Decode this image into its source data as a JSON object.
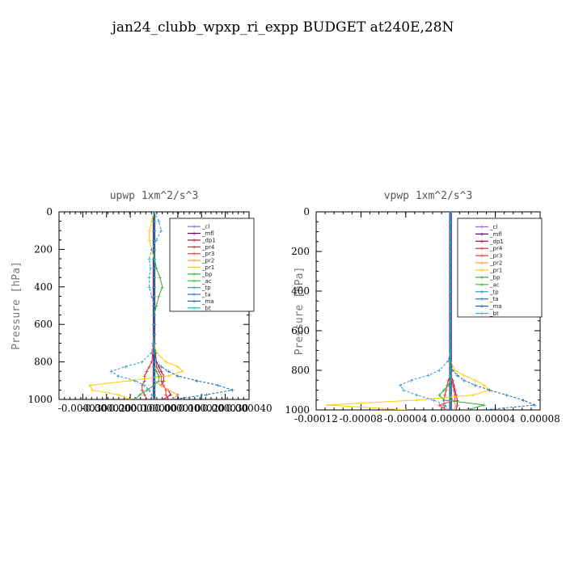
{
  "figure": {
    "title": "jan24_clubb_wpxp_ri_expp  BUDGET at240E,28N"
  },
  "chart_data": [
    {
      "type": "line",
      "title": "upwp   1xm^2/s^3",
      "ylabel": "Pressure [hPa]",
      "xlabel": "",
      "ylim": [
        1000,
        0
      ],
      "xlim": [
        -4e-05,
        4e-05
      ],
      "y_ticks": [
        "0",
        "200",
        "400",
        "600",
        "800",
        "1000"
      ],
      "x_ticks": [
        "-0.000030",
        "-0.000020",
        "-0.000010",
        "0.000000",
        "0.000010",
        "0.000020",
        "0.000030",
        "0.000040"
      ],
      "legend_position": "upper-right",
      "levels": [
        0,
        50,
        100,
        150,
        200,
        250,
        300,
        350,
        400,
        450,
        500,
        550,
        600,
        650,
        700,
        750,
        800,
        825,
        850,
        875,
        900,
        925,
        950,
        975,
        1000
      ],
      "series": [
        {
          "name": "_cl",
          "color": "#9966cc",
          "values": [
            0,
            0,
            0,
            0,
            0,
            0,
            0,
            0,
            0,
            0,
            0,
            0,
            0,
            0,
            0,
            0,
            0,
            0,
            0,
            0,
            0,
            0,
            0,
            0,
            0
          ]
        },
        {
          "name": "_mfl",
          "color": "#660066",
          "values": [
            0,
            0,
            0,
            0,
            0,
            0,
            0,
            0,
            0,
            0,
            0,
            0,
            0,
            0,
            0,
            0,
            0,
            0,
            0,
            0,
            0,
            0,
            0,
            0,
            0
          ]
        },
        {
          "name": "_dp1",
          "color": "#aa1144",
          "values": [
            0,
            0,
            0,
            0,
            0,
            0,
            0,
            0,
            0,
            0,
            0,
            0,
            0,
            0,
            2e-07,
            5e-07,
            1e-06,
            2e-06,
            3e-06,
            4e-06,
            4e-06,
            3e-06,
            6e-06,
            7e-06,
            4e-06
          ]
        },
        {
          "name": "_pr4",
          "color": "#cc3333",
          "values": [
            0,
            0,
            0,
            0,
            0,
            0,
            0,
            0,
            0,
            0,
            0,
            0,
            0,
            0,
            -2e-07,
            -5e-07,
            -1e-06,
            -2e-06,
            -3e-06,
            -4e-06,
            -4e-06,
            -5e-06,
            -5e-06,
            -4e-06,
            -3e-06
          ]
        },
        {
          "name": "_pr3",
          "color": "#ff3333",
          "values": [
            0,
            0,
            0,
            0,
            0,
            0,
            0,
            0,
            0,
            0,
            0,
            0,
            0,
            0,
            2e-07,
            5e-07,
            1e-06,
            1e-06,
            2e-06,
            3e-06,
            3e-06,
            4e-06,
            5e-06,
            5e-06,
            6e-06
          ]
        },
        {
          "name": "_pr2",
          "color": "#ff9933",
          "values": [
            0,
            0,
            0,
            0,
            0,
            0,
            0,
            0,
            0,
            0,
            0,
            0,
            0,
            0,
            0,
            0,
            0,
            0,
            0,
            0,
            0,
            3e-06,
            6e-06,
            1e-05,
            8e-06
          ]
        },
        {
          "name": "_pr1",
          "color": "#ffcc00",
          "values": [
            0,
            -1e-06,
            -2e-06,
            -2e-06,
            -1e-06,
            0,
            0,
            0,
            0,
            0,
            0,
            0,
            0,
            0,
            0,
            1e-06,
            5e-06,
            1e-05,
            1.2e-05,
            6e-06,
            -1e-05,
            -2.7e-05,
            -2.6e-05,
            -1.5e-05,
            -1e-05
          ]
        },
        {
          "name": "_bp",
          "color": "#33aa33",
          "values": [
            0,
            0,
            0,
            0,
            0,
            2e-07,
            1e-06,
            2.5e-06,
            3.5e-06,
            2e-06,
            1e-06,
            0,
            0,
            0,
            0,
            0,
            0,
            0,
            1e-06,
            2e-06,
            2e-06,
            0,
            -3e-06,
            -6e-06,
            -8e-06
          ]
        },
        {
          "name": "_ac",
          "color": "#33cc33",
          "values": [
            0,
            0,
            0,
            0,
            0,
            0,
            0,
            0,
            0,
            0,
            0,
            0,
            0,
            0,
            0,
            0,
            0,
            0,
            0,
            0,
            0,
            0,
            0,
            0,
            0
          ]
        },
        {
          "name": "_tp",
          "color": "#3399cc",
          "values": [
            0,
            2e-06,
            3e-06,
            1e-06,
            -1e-06,
            -2e-06,
            -1.5e-06,
            -2e-06,
            -2e-06,
            -1e-06,
            0,
            0,
            0,
            0,
            -5e-07,
            -1e-06,
            -5e-06,
            -1.2e-05,
            -1.8e-05,
            -1.5e-05,
            -8e-06,
            -4e-06,
            -2e-06,
            -1e-06,
            0
          ]
        },
        {
          "name": "_ta",
          "color": "#3366ff",
          "values": [
            0,
            0,
            0,
            0,
            0,
            0,
            0,
            0,
            0,
            0,
            0,
            0,
            0,
            0,
            0,
            0,
            0,
            0,
            0,
            0,
            0,
            0,
            0,
            0,
            0
          ]
        },
        {
          "name": "_ma",
          "color": "#1166aa",
          "values": [
            0,
            0,
            0,
            0,
            0,
            0,
            0,
            0,
            0,
            0,
            0,
            0,
            0,
            0,
            0,
            5e-07,
            1e-06,
            3e-06,
            6e-06,
            1e-05,
            1.8e-05,
            2.7e-05,
            3.3e-05,
            2.2e-05,
            8e-06
          ]
        },
        {
          "name": "_bt",
          "color": "#00cccc",
          "values": [
            0,
            0,
            0,
            0,
            0,
            0,
            0,
            0,
            0,
            0,
            0,
            0,
            0,
            0,
            0,
            0,
            0,
            0,
            0,
            0,
            0,
            0,
            0,
            0,
            0
          ]
        }
      ]
    },
    {
      "type": "line",
      "title": "vpwp   1xm^2/s^3",
      "ylabel": "Pressure [hPa]",
      "xlabel": "",
      "ylim": [
        1000,
        0
      ],
      "xlim": [
        -0.00012,
        8e-05
      ],
      "y_ticks": [
        "0",
        "200",
        "400",
        "600",
        "800",
        "1000"
      ],
      "x_ticks": [
        "-0.00012",
        "-0.00008",
        "-0.00004",
        "0.00000",
        "0.00004",
        "0.00008"
      ],
      "legend_position": "upper-right",
      "levels": [
        0,
        50,
        100,
        150,
        200,
        250,
        300,
        350,
        400,
        450,
        500,
        550,
        600,
        650,
        700,
        750,
        800,
        825,
        850,
        875,
        900,
        925,
        950,
        975,
        1000
      ],
      "series": [
        {
          "name": "_cl",
          "color": "#9966cc",
          "values": [
            0,
            0,
            0,
            0,
            0,
            0,
            0,
            0,
            0,
            0,
            0,
            0,
            0,
            0,
            0,
            0,
            0,
            0,
            0,
            0,
            0,
            0,
            0,
            0,
            0
          ]
        },
        {
          "name": "_mfl",
          "color": "#660066",
          "values": [
            0,
            0,
            0,
            0,
            0,
            0,
            0,
            0,
            0,
            0,
            0,
            0,
            0,
            0,
            0,
            0,
            0,
            0,
            0,
            0,
            0,
            0,
            0,
            0,
            0
          ]
        },
        {
          "name": "_dp1",
          "color": "#aa1144",
          "values": [
            0,
            0,
            0,
            0,
            0,
            0,
            0,
            0,
            0,
            0,
            0,
            0,
            0,
            0,
            0,
            0,
            0,
            0,
            2e-06,
            3e-06,
            4e-06,
            5e-06,
            6e-06,
            6e-06,
            5e-06
          ]
        },
        {
          "name": "_pr4",
          "color": "#cc3333",
          "values": [
            0,
            0,
            0,
            0,
            0,
            0,
            0,
            0,
            0,
            0,
            0,
            0,
            0,
            0,
            0,
            0,
            0,
            0,
            -2e-06,
            -3e-06,
            -4e-06,
            -5e-06,
            -6e-06,
            -6e-06,
            -5e-06
          ]
        },
        {
          "name": "_pr3",
          "color": "#ff3333",
          "values": [
            0,
            0,
            0,
            0,
            0,
            0,
            0,
            0,
            0,
            0,
            0,
            0,
            0,
            0,
            0,
            0,
            0,
            0,
            1e-06,
            2e-06,
            3e-06,
            4e-06,
            4e-06,
            -1e-05,
            -4e-06
          ]
        },
        {
          "name": "_pr2",
          "color": "#ff9933",
          "values": [
            0,
            0,
            0,
            0,
            0,
            0,
            0,
            0,
            0,
            0,
            0,
            0,
            0,
            0,
            0,
            0,
            0,
            0,
            0,
            0,
            0,
            0,
            2e-06,
            5e-06,
            3e-06
          ]
        },
        {
          "name": "_pr1",
          "color": "#ffcc00",
          "values": [
            0,
            0,
            0,
            0,
            0,
            0,
            0,
            0,
            0,
            0,
            0,
            0,
            0,
            0,
            0,
            0,
            4e-06,
            1.2e-05,
            2.2e-05,
            3e-05,
            3.5e-05,
            2e-05,
            -3e-05,
            -0.00011,
            -4e-05
          ]
        },
        {
          "name": "_bp",
          "color": "#33aa33",
          "values": [
            0,
            0,
            0,
            0,
            0,
            0,
            0,
            0,
            0,
            0,
            0,
            0,
            0,
            0,
            0,
            0,
            0,
            0,
            0,
            -2e-06,
            -6e-06,
            -1e-05,
            -6e-06,
            3e-05,
            1.5e-05
          ]
        },
        {
          "name": "_ac",
          "color": "#33cc33",
          "values": [
            0,
            0,
            0,
            0,
            0,
            0,
            0,
            0,
            0,
            0,
            0,
            0,
            0,
            0,
            0,
            0,
            0,
            0,
            0,
            0,
            0,
            0,
            0,
            0,
            0
          ]
        },
        {
          "name": "_tp",
          "color": "#3399cc",
          "values": [
            0,
            0,
            0,
            0,
            0,
            0,
            0,
            0,
            0,
            0,
            0,
            0,
            0,
            0,
            0,
            -2e-06,
            -1e-05,
            -2e-05,
            -3.5e-05,
            -4.5e-05,
            -4.2e-05,
            -3e-05,
            -1.5e-05,
            -5e-06,
            -2e-06
          ]
        },
        {
          "name": "_ta",
          "color": "#3366ff",
          "values": [
            0,
            0,
            0,
            0,
            0,
            0,
            0,
            0,
            0,
            0,
            0,
            0,
            0,
            0,
            0,
            0,
            0,
            0,
            0,
            0,
            0,
            0,
            0,
            0,
            0
          ]
        },
        {
          "name": "_ma",
          "color": "#1166aa",
          "values": [
            0,
            0,
            0,
            0,
            0,
            0,
            0,
            0,
            0,
            0,
            0,
            0,
            0,
            0,
            0,
            0,
            2e-06,
            6e-06,
            1.2e-05,
            2.2e-05,
            3.5e-05,
            5e-05,
            6.5e-05,
            7.5e-05,
            3e-05
          ]
        },
        {
          "name": "_bt",
          "color": "#00cccc",
          "values": [
            0,
            0,
            0,
            0,
            0,
            0,
            0,
            0,
            0,
            0,
            0,
            0,
            0,
            0,
            0,
            0,
            0,
            0,
            0,
            0,
            0,
            0,
            0,
            0,
            0
          ]
        }
      ]
    }
  ]
}
